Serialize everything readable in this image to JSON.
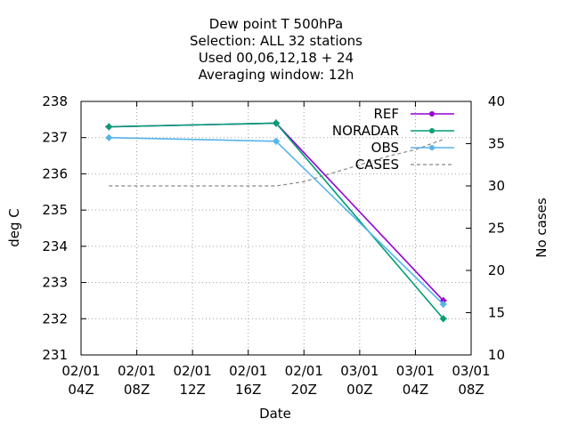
{
  "chart_data": {
    "type": "line",
    "title": [
      "Dew point T 500hPa",
      "Selection: ALL      32 stations",
      "Used  00,06,12,18 + 24",
      "Averaging window: 12h"
    ],
    "xlabel": "Date",
    "ylabel": "deg C",
    "y2label": "No cases",
    "x_ticks": [
      {
        "h": 4,
        "l1": "02/01",
        "l2": "04Z"
      },
      {
        "h": 8,
        "l1": "02/01",
        "l2": "08Z"
      },
      {
        "h": 12,
        "l1": "02/01",
        "l2": "12Z"
      },
      {
        "h": 16,
        "l1": "02/01",
        "l2": "16Z"
      },
      {
        "h": 20,
        "l1": "02/01",
        "l2": "20Z"
      },
      {
        "h": 24,
        "l1": "03/01",
        "l2": "00Z"
      },
      {
        "h": 28,
        "l1": "03/01",
        "l2": "04Z"
      },
      {
        "h": 32,
        "l1": "03/01",
        "l2": "08Z"
      }
    ],
    "xlim": [
      4,
      32
    ],
    "ylim": [
      231,
      238
    ],
    "y_ticks": [
      231,
      232,
      233,
      234,
      235,
      236,
      237,
      238
    ],
    "y2lim": [
      10,
      40
    ],
    "y2_ticks": [
      10,
      15,
      20,
      25,
      30,
      35,
      40
    ],
    "grid": true,
    "legend_position": "top-right",
    "series": [
      {
        "name": "REF",
        "color": "#9400d3",
        "style": "line-points",
        "x": [
          6,
          18,
          30
        ],
        "y": [
          237.3,
          237.4,
          232.5
        ]
      },
      {
        "name": "NORADAR",
        "color": "#009e73",
        "style": "line-points",
        "x": [
          6,
          18,
          30
        ],
        "y": [
          237.3,
          237.4,
          232.0
        ]
      },
      {
        "name": "OBS",
        "color": "#56b4e9",
        "style": "line-points",
        "x": [
          6,
          18,
          30
        ],
        "y": [
          237.0,
          236.9,
          232.4
        ]
      },
      {
        "name": "CASES",
        "color": "#888888",
        "style": "dashed",
        "axis": "y2",
        "x": [
          6,
          10,
          14,
          18,
          20,
          22,
          24,
          26,
          28,
          30
        ],
        "y": [
          30,
          30,
          30,
          30,
          30.5,
          31.5,
          32.5,
          33.5,
          34.3,
          35.5
        ]
      }
    ]
  }
}
